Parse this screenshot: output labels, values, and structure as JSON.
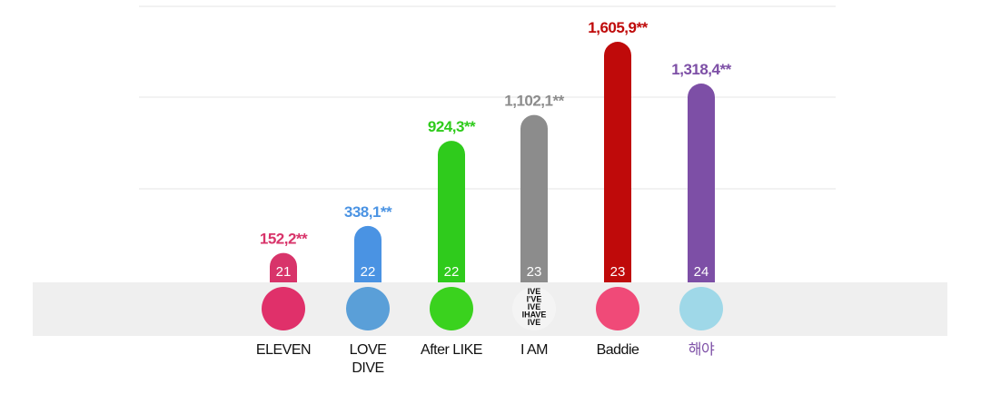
{
  "chart_data": {
    "type": "bar",
    "categories": [
      "ELEVEN",
      "LOVE DIVE",
      "After LIKE",
      "I AM",
      "Baddie",
      "해야"
    ],
    "values": [
      152.2,
      338.1,
      924.3,
      1102.1,
      1605.9,
      1318.4
    ],
    "value_labels": [
      "152,2**",
      "338,1**",
      "924,3**",
      "1,102,1**",
      "1,605,9**",
      "1,318,4**"
    ],
    "bar_numbers": [
      21,
      22,
      22,
      23,
      23,
      24
    ],
    "colors": [
      "#d8346a",
      "#4a93e3",
      "#2fcb1c",
      "#8c8c8c",
      "#bf0a0a",
      "#7d4fa6"
    ],
    "label_colors": [
      "#111111",
      "#111111",
      "#111111",
      "#111111",
      "#111111",
      "#7d4fa6"
    ],
    "album_colors": [
      "#e0306a",
      "#5a9fd8",
      "#3ad21e",
      "#f4f4f4",
      "#f04a78",
      "#9fd8e8"
    ],
    "album_art_text": {
      "index": 3,
      "lines": [
        "IVE",
        "I'VE",
        "IVE",
        "IHAVE",
        "IVE"
      ]
    },
    "ylim": [
      -50,
      1850
    ]
  }
}
